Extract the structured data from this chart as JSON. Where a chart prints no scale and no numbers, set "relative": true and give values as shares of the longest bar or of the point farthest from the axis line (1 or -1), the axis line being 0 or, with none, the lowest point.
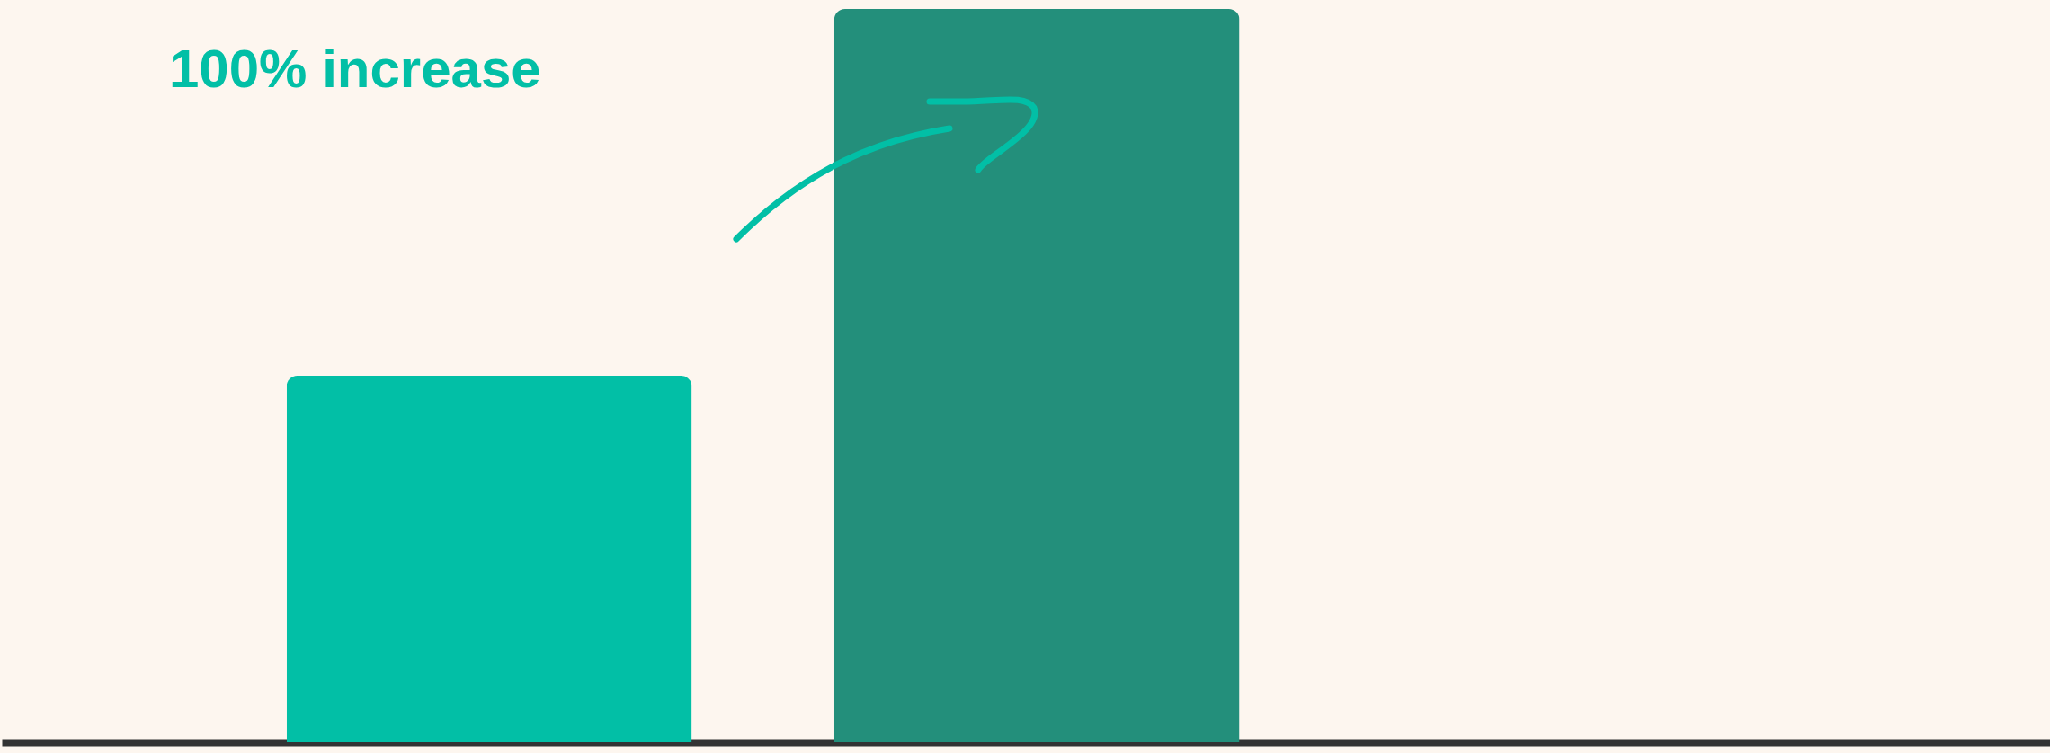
{
  "chart_data": {
    "type": "bar",
    "relative": true,
    "categories": [
      null,
      null
    ],
    "values": [
      0.5,
      1
    ],
    "colors": [
      "#02bfa6",
      "#238f7b"
    ],
    "annotations": [
      "100% increase"
    ]
  }
}
